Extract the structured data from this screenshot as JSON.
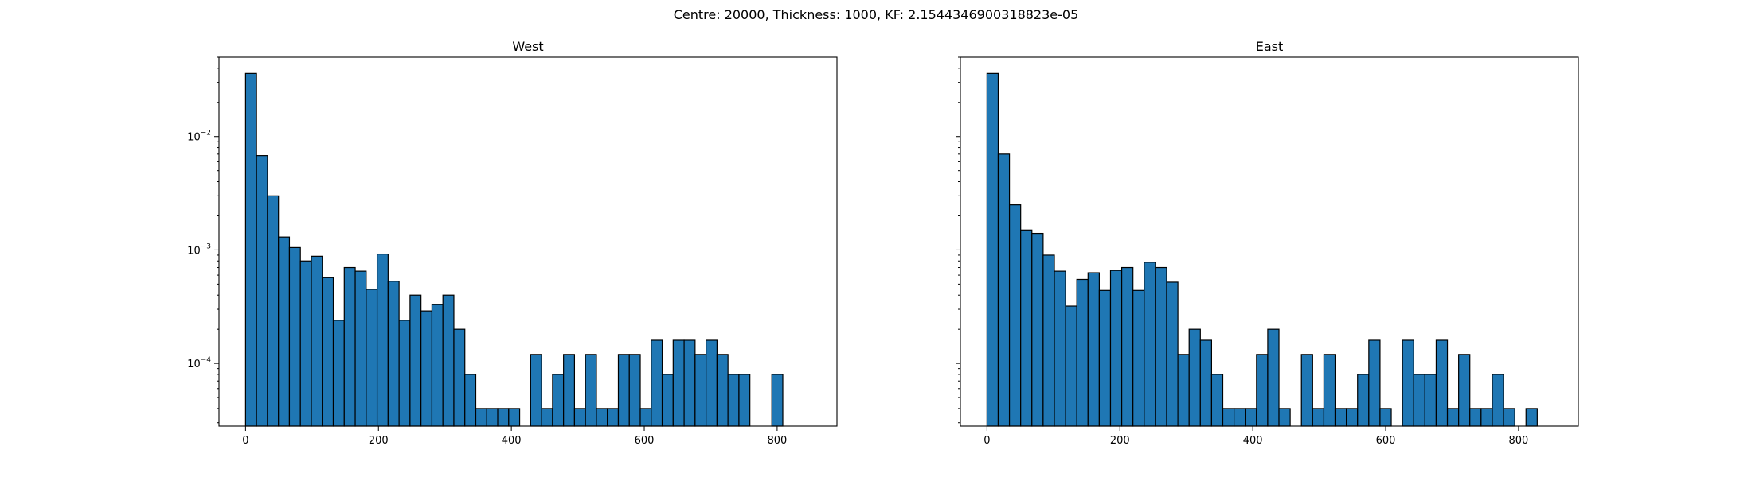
{
  "figure": {
    "suptitle": "Centre: 20000, Thickness: 1000, KF: 2.1544346900318823e-05"
  },
  "colors": {
    "bar": "#1f77b4",
    "edge": "#000000"
  },
  "chart_data": [
    {
      "type": "bar",
      "title": "West",
      "yscale": "log",
      "xlim": [
        -40,
        890
      ],
      "ylim": [
        2.8e-05,
        0.05
      ],
      "bin_width": 16.5,
      "x_ticks": [
        0,
        200,
        400,
        600,
        800
      ],
      "y_ticks": [
        {
          "value": 0.01,
          "base": "10",
          "exp": "−2"
        },
        {
          "value": 0.001,
          "base": "10",
          "exp": "−3"
        },
        {
          "value": 0.0001,
          "base": "10",
          "exp": "−4"
        }
      ],
      "grid": false,
      "bins": [
        [
          0,
          0.036
        ],
        [
          16.5,
          0.0068
        ],
        [
          33,
          0.003
        ],
        [
          49.5,
          0.0013
        ],
        [
          66,
          0.00105
        ],
        [
          82.5,
          0.0008
        ],
        [
          99,
          0.00088
        ],
        [
          115.5,
          0.00057
        ],
        [
          132,
          0.00024
        ],
        [
          148.5,
          0.0007
        ],
        [
          165,
          0.00065
        ],
        [
          181.5,
          0.00045
        ],
        [
          198,
          0.00092
        ],
        [
          214.5,
          0.00053
        ],
        [
          231,
          0.00024
        ],
        [
          247.5,
          0.0004
        ],
        [
          264,
          0.00029
        ],
        [
          280.5,
          0.00033
        ],
        [
          297,
          0.0004
        ],
        [
          313.5,
          0.0002
        ],
        [
          330,
          8e-05
        ],
        [
          346.5,
          4e-05
        ],
        [
          363,
          4e-05
        ],
        [
          379.5,
          4e-05
        ],
        [
          396,
          4e-05
        ],
        [
          429,
          0.00012
        ],
        [
          445.5,
          4e-05
        ],
        [
          462,
          8e-05
        ],
        [
          478.5,
          0.00012
        ],
        [
          495,
          4e-05
        ],
        [
          511.5,
          0.00012
        ],
        [
          528,
          4e-05
        ],
        [
          544.5,
          4e-05
        ],
        [
          561,
          0.00012
        ],
        [
          577.5,
          0.00012
        ],
        [
          594,
          4e-05
        ],
        [
          610.5,
          0.00016
        ],
        [
          627,
          8e-05
        ],
        [
          643.5,
          0.00016
        ],
        [
          660,
          0.00016
        ],
        [
          676.5,
          0.00012
        ],
        [
          693,
          0.00016
        ],
        [
          709.5,
          0.00012
        ],
        [
          726,
          8e-05
        ],
        [
          742.5,
          8e-05
        ],
        [
          792,
          8e-05
        ]
      ]
    },
    {
      "type": "bar",
      "title": "East",
      "yscale": "log",
      "xlim": [
        -40,
        890
      ],
      "ylim": [
        2.8e-05,
        0.05
      ],
      "bin_width": 16.9,
      "x_ticks": [
        0,
        200,
        400,
        600,
        800
      ],
      "y_ticks": [
        {
          "value": 0.01
        },
        {
          "value": 0.001
        },
        {
          "value": 0.0001
        }
      ],
      "grid": false,
      "bins": [
        [
          0,
          0.036
        ],
        [
          16.9,
          0.007
        ],
        [
          33.8,
          0.0025
        ],
        [
          50.7,
          0.0015
        ],
        [
          67.6,
          0.0014
        ],
        [
          84.5,
          0.0009
        ],
        [
          101.4,
          0.00065
        ],
        [
          118.3,
          0.00032
        ],
        [
          135.2,
          0.00055
        ],
        [
          152.1,
          0.00063
        ],
        [
          169,
          0.00044
        ],
        [
          185.9,
          0.00066
        ],
        [
          202.8,
          0.0007
        ],
        [
          219.7,
          0.00044
        ],
        [
          236.6,
          0.00078
        ],
        [
          253.5,
          0.0007
        ],
        [
          270.4,
          0.00052
        ],
        [
          287.3,
          0.00012
        ],
        [
          304.2,
          0.0002
        ],
        [
          321.1,
          0.00016
        ],
        [
          338,
          8e-05
        ],
        [
          354.9,
          4e-05
        ],
        [
          371.8,
          4e-05
        ],
        [
          388.7,
          4e-05
        ],
        [
          405.6,
          0.00012
        ],
        [
          422.5,
          0.0002
        ],
        [
          439.4,
          4e-05
        ],
        [
          473.2,
          0.00012
        ],
        [
          490.1,
          4e-05
        ],
        [
          507,
          0.00012
        ],
        [
          523.9,
          4e-05
        ],
        [
          540.8,
          4e-05
        ],
        [
          557.7,
          8e-05
        ],
        [
          574.6,
          0.00016
        ],
        [
          591.5,
          4e-05
        ],
        [
          625.3,
          0.00016
        ],
        [
          642.2,
          8e-05
        ],
        [
          659.1,
          8e-05
        ],
        [
          676,
          0.00016
        ],
        [
          692.9,
          4e-05
        ],
        [
          709.8,
          0.00012
        ],
        [
          726.7,
          4e-05
        ],
        [
          743.6,
          4e-05
        ],
        [
          760.5,
          8e-05
        ],
        [
          777.4,
          4e-05
        ],
        [
          811.2,
          4e-05
        ]
      ]
    }
  ]
}
